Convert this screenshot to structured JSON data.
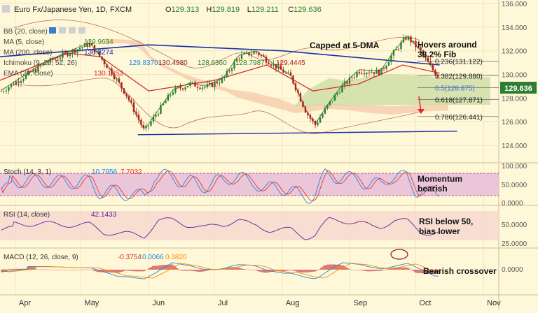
{
  "header": {
    "symbol_title": "Euro Fx/Japanese Yen, 1D, FXCM",
    "ohlc": [
      {
        "key": "O",
        "value": "129.313"
      },
      {
        "key": "H",
        "value": "129.819"
      },
      {
        "key": "L",
        "value": "129.211"
      },
      {
        "key": "C",
        "value": "129.636"
      }
    ]
  },
  "indicators_main": [
    {
      "label": "BB (20, close)",
      "values": []
    },
    {
      "label": "MA (5, close)",
      "values": [
        "129.9634"
      ]
    },
    {
      "label": "MA (200, close)",
      "values": [
        "130.8274"
      ]
    },
    {
      "label": "Ichimoku (9, 26, 52, 26)",
      "values": [
        "129.8370",
        "130.4980",
        "128.6360",
        "128.7987",
        "129.4445"
      ]
    },
    {
      "label": "EMA (20, close)",
      "values": [
        "130.1653"
      ]
    }
  ],
  "annotations": [
    {
      "text": "Capped at 5-DMA"
    },
    {
      "text": "Hovers around"
    },
    {
      "text": "38.2% Fib"
    },
    {
      "text": "Momentum"
    },
    {
      "text": "bearish"
    },
    {
      "text": "RSI below 50,"
    },
    {
      "text": "bias lower"
    },
    {
      "text": "Bearish crossover"
    }
  ],
  "fib_levels": [
    {
      "label": "0.236(131.122)",
      "value": 131.122
    },
    {
      "label": "0.382(129.880)",
      "value": 129.88
    },
    {
      "label": "0.5(128.875)",
      "value": 128.875
    },
    {
      "label": "0.618(127.871)",
      "value": 127.871
    },
    {
      "label": "0.786(126.441)",
      "value": 126.441
    }
  ],
  "price_badge": "129.636",
  "stoch": {
    "label": "Stoch (14, 3, 1)",
    "values": [
      "10.7956",
      "7.7032"
    ]
  },
  "rsi": {
    "label": "RSI (14, close)",
    "value": "42.1433"
  },
  "macd": {
    "label": "MACD (12, 26, close, 9)",
    "values": [
      "-0.3754",
      "0.0066",
      "0.3820"
    ]
  },
  "colors": {
    "background": "#fff8d8",
    "candle_up": "#2e7d32",
    "candle_down": "#b71c1c",
    "ma200": "#1a2fa8",
    "ema20": "#d32f2f",
    "cloud": "#f4c9a8",
    "bb": "#8b1d1d",
    "trendline": "#1a2fa8",
    "stoch_band": "#e7bcd8",
    "rsi_band": "#f7d8d0",
    "rsi_line": "#6a1b9a",
    "macd_line": "#1e88e5",
    "signal_line": "#fb8c00",
    "histogram": "#c62828"
  },
  "chart_data": {
    "type": "candlestick",
    "x_labels": [
      "Apr",
      "May",
      "Jun",
      "Jul",
      "Aug",
      "Sep",
      "Oct",
      "Nov"
    ],
    "price_axis": {
      "ticks": [
        "136.000",
        "134.000",
        "132.000",
        "130.000",
        "128.000",
        "126.000",
        "124.000"
      ],
      "ylim": [
        123,
        136
      ]
    },
    "price_path": [
      [
        "Mar 25",
        128.5
      ],
      [
        "Apr 5",
        129.8
      ],
      [
        "Apr 15",
        131.0
      ],
      [
        "Apr 30",
        132.2
      ],
      [
        "May 5",
        132.6
      ],
      [
        "May 15",
        130.2
      ],
      [
        "May 22",
        128.2
      ],
      [
        "May 30",
        125.2
      ],
      [
        "Jun 5",
        126.8
      ],
      [
        "Jun 12",
        128.6
      ],
      [
        "Jun 20",
        129.2
      ],
      [
        "Jun 27",
        128.9
      ],
      [
        "Jul 5",
        129.6
      ],
      [
        "Jul 12",
        131.5
      ],
      [
        "Jul 20",
        131.9
      ],
      [
        "Jul 28",
        130.8
      ],
      [
        "Aug 5",
        129.8
      ],
      [
        "Aug 12",
        126.8
      ],
      [
        "Aug 16",
        125.7
      ],
      [
        "Aug 22",
        127.4
      ],
      [
        "Aug 28",
        128.9
      ],
      [
        "Sep 5",
        130.3
      ],
      [
        "Sep 15",
        130.2
      ],
      [
        "Sep 20",
        131.6
      ],
      [
        "Sep 27",
        133.2
      ],
      [
        "Oct 3",
        132.0
      ],
      [
        "Oct 8",
        130.6
      ],
      [
        "Oct 12",
        129.64
      ]
    ],
    "ma200": [
      [
        "Mar 25",
        131.5
      ],
      [
        "Jun 1",
        132.5
      ],
      [
        "Aug 1",
        132.0
      ],
      [
        "Oct 12",
        130.8
      ]
    ],
    "ema20": [
      [
        "Mar 25",
        129.5
      ],
      [
        "Apr 25",
        131.8
      ],
      [
        "May 10",
        131.5
      ],
      [
        "Jun 1",
        128.6
      ],
      [
        "Jul 1",
        129.5
      ],
      [
        "Jul 25",
        130.8
      ],
      [
        "Aug 15",
        128.6
      ],
      [
        "Sep 5",
        129.2
      ],
      [
        "Sep 25",
        130.8
      ],
      [
        "Oct 12",
        130.1
      ]
    ],
    "trendline": [
      [
        "May 27",
        124.9
      ],
      [
        "Oct 20",
        125.2
      ]
    ],
    "stoch_axis": {
      "ticks": [
        "100.000",
        "50.0000",
        "0.0000"
      ],
      "ylim": [
        0,
        100
      ],
      "band": [
        20,
        80
      ]
    },
    "rsi_axis": {
      "ticks": [
        "50.0000",
        "25.0000"
      ],
      "ylim": [
        20,
        80
      ],
      "band": [
        30,
        70
      ]
    },
    "macd_axis": {
      "ticks": [
        "0.0000"
      ]
    }
  }
}
